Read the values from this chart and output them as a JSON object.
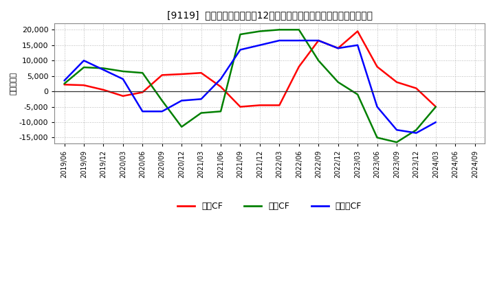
{
  "title": "[9119]  キャッシュフローの12か月移動合計の対前年同期増減額の推移",
  "ylabel": "（百万円）",
  "background_color": "#ffffff",
  "plot_bg_color": "#ffffff",
  "grid_color": "#999999",
  "ylim": [
    -17000,
    22000
  ],
  "yticks": [
    -15000,
    -10000,
    -5000,
    0,
    5000,
    10000,
    15000,
    20000
  ],
  "x_labels": [
    "2019/06",
    "2019/09",
    "2019/12",
    "2020/03",
    "2020/06",
    "2020/09",
    "2020/12",
    "2021/03",
    "2021/06",
    "2021/09",
    "2021/12",
    "2022/03",
    "2022/06",
    "2022/09",
    "2022/12",
    "2023/03",
    "2023/06",
    "2023/09",
    "2023/12",
    "2024/03",
    "2024/06",
    "2024/09"
  ],
  "series": {
    "営業CF": {
      "color": "#ff0000",
      "values": [
        2200,
        2000,
        500,
        -1500,
        -300,
        5300,
        5600,
        6000,
        1500,
        -5000,
        -4500,
        -4500,
        8000,
        16500,
        14000,
        19500,
        8000,
        3000,
        1000,
        -5000,
        null,
        null
      ]
    },
    "投資CF": {
      "color": "#008000",
      "values": [
        2500,
        7800,
        7500,
        6500,
        6000,
        -3000,
        -11500,
        -7000,
        -6500,
        18500,
        19500,
        20000,
        20000,
        10000,
        3000,
        -1000,
        -15000,
        -16500,
        -12500,
        -5000,
        null,
        null
      ]
    },
    "フリーCF": {
      "color": "#0000ff",
      "values": [
        3500,
        10000,
        7000,
        4000,
        -6500,
        -6500,
        -3000,
        -2500,
        4000,
        13500,
        15000,
        16500,
        16500,
        16500,
        14000,
        15000,
        -5000,
        -12500,
        -13500,
        -10000,
        null,
        null
      ]
    }
  },
  "legend_labels": [
    "営業CF",
    "投資CF",
    "フリーCF"
  ],
  "legend_colors": [
    "#ff0000",
    "#008000",
    "#0000ff"
  ]
}
